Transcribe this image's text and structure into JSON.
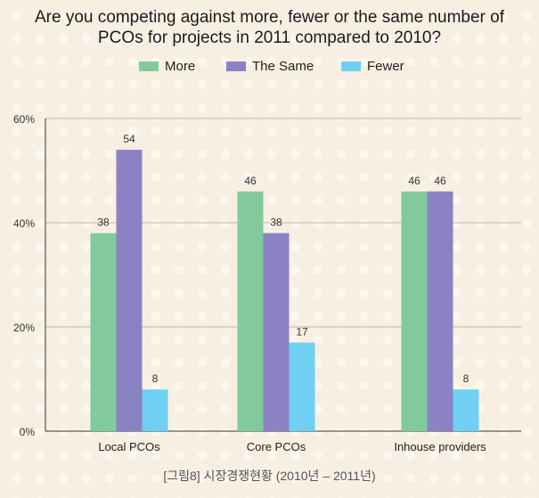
{
  "chart_data": {
    "type": "bar",
    "title_lines": [
      "Are you competing against more, fewer or the same number of",
      "PCOs for projects in 2011 compared to 2010?"
    ],
    "categories": [
      "Local PCOs",
      "Core PCOs",
      "Inhouse providers"
    ],
    "series": [
      {
        "name": "More",
        "values": [
          38,
          46,
          46
        ],
        "color": "#82ca9c"
      },
      {
        "name": "The Same",
        "values": [
          54,
          38,
          46
        ],
        "color": "#8b82c4"
      },
      {
        "name": "Fewer",
        "values": [
          8,
          17,
          8
        ],
        "color": "#6fd0f3"
      }
    ],
    "ylim": [
      0,
      60
    ],
    "yticks": [
      0,
      20,
      40,
      60
    ],
    "ytick_labels": [
      "0%",
      "20%",
      "40%",
      "60%"
    ],
    "grid": true,
    "legend_position": "top"
  },
  "caption": "[그림8] 시장경쟁현황 (2010년 – 2011년)"
}
